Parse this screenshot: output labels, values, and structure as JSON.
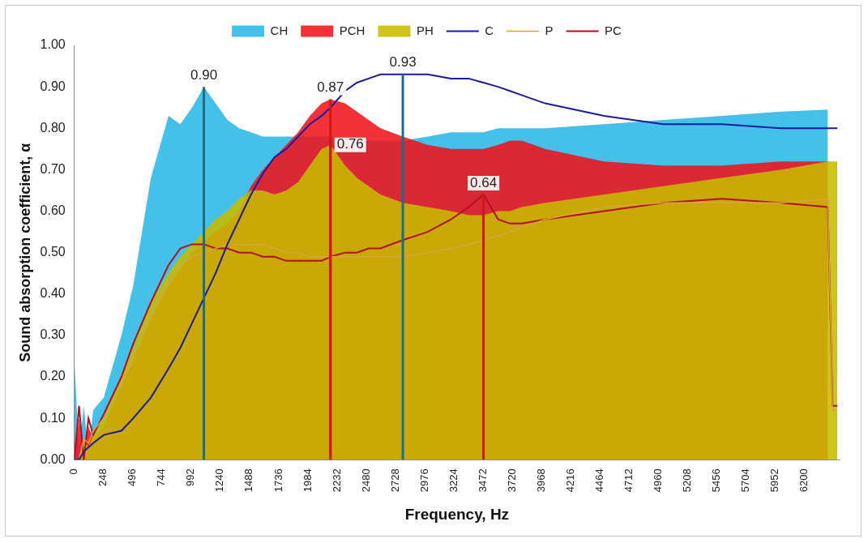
{
  "chart_data": {
    "type": "line",
    "x_label": "Frequency, Hz",
    "y_label": "Sound absorption coefficient, α",
    "legend": "top",
    "grid": false,
    "xlim": [
      0,
      6500
    ],
    "xticks": [
      0,
      248,
      496,
      744,
      992,
      1240,
      1488,
      1736,
      1984,
      2232,
      2480,
      2728,
      2976,
      3224,
      3472,
      3720,
      3968,
      4216,
      4464,
      4712,
      4960,
      5208,
      5456,
      5704,
      5952,
      6200
    ],
    "ylim": [
      0,
      1
    ],
    "yticks": [
      {
        "value": 0,
        "label": "0.00"
      },
      {
        "value": 0.1,
        "label": "0.10"
      },
      {
        "value": 0.2,
        "label": "0.20"
      },
      {
        "value": 0.3,
        "label": "0.30"
      },
      {
        "value": 0.4,
        "label": "0.40"
      },
      {
        "value": 0.5,
        "label": "0.50"
      },
      {
        "value": 0.6,
        "label": "0.60"
      },
      {
        "value": 0.7,
        "label": "0.70"
      },
      {
        "value": 0.8,
        "label": "0.80"
      },
      {
        "value": 0.9,
        "label": "0.90"
      },
      {
        "value": 1,
        "label": "1.00"
      }
    ],
    "x": [
      0,
      40,
      80,
      120,
      160,
      250,
      400,
      500,
      650,
      800,
      900,
      1000,
      1100,
      1200,
      1300,
      1400,
      1500,
      1600,
      1700,
      1800,
      1900,
      2000,
      2100,
      2175,
      2300,
      2400,
      2500,
      2600,
      2790,
      3000,
      3200,
      3350,
      3475,
      3600,
      3700,
      3800,
      4000,
      4500,
      5000,
      5500,
      6000,
      6400,
      6440,
      6480
    ],
    "series": [
      {
        "name": "CH",
        "type": "area",
        "color": "#2bb8e6",
        "values": [
          0.24,
          0.02,
          0.13,
          0.02,
          0.12,
          0.15,
          0.3,
          0.42,
          0.68,
          0.83,
          0.81,
          0.85,
          0.9,
          0.86,
          0.82,
          0.8,
          0.79,
          0.78,
          0.78,
          0.78,
          0.78,
          0.78,
          0.78,
          0.78,
          0.77,
          0.77,
          0.77,
          0.77,
          0.77,
          0.78,
          0.79,
          0.79,
          0.79,
          0.8,
          0.8,
          0.8,
          0.8,
          0.81,
          0.82,
          0.83,
          0.84,
          0.845,
          null,
          null
        ]
      },
      {
        "name": "PCH",
        "type": "area",
        "color": "#f0141e",
        "values": [
          0,
          0.1,
          0.02,
          0.08,
          0.05,
          0.08,
          0.18,
          0.24,
          0.34,
          0.42,
          0.46,
          0.5,
          0.53,
          0.55,
          0.57,
          0.6,
          0.66,
          0.7,
          0.73,
          0.76,
          0.79,
          0.83,
          0.86,
          0.87,
          0.86,
          0.84,
          0.82,
          0.8,
          0.78,
          0.76,
          0.75,
          0.75,
          0.75,
          0.76,
          0.77,
          0.77,
          0.75,
          0.72,
          0.71,
          0.71,
          0.72,
          0.72,
          null,
          null
        ]
      },
      {
        "name": "PH",
        "type": "area",
        "color": "#c8bc00",
        "values": [
          0,
          0,
          0.05,
          0.03,
          0.06,
          0.1,
          0.2,
          0.27,
          0.38,
          0.45,
          0.49,
          0.52,
          0.55,
          0.58,
          0.6,
          0.63,
          0.65,
          0.65,
          0.64,
          0.65,
          0.67,
          0.71,
          0.75,
          0.76,
          0.71,
          0.68,
          0.66,
          0.64,
          0.62,
          0.61,
          0.6,
          0.59,
          0.59,
          0.6,
          0.6,
          0.61,
          0.62,
          0.64,
          0.66,
          0.68,
          0.7,
          0.72,
          0.72,
          0.72
        ]
      },
      {
        "name": "C",
        "type": "line",
        "color": "#1a1aa0",
        "values": [
          0,
          0,
          0.02,
          0.03,
          0.04,
          0.06,
          0.07,
          0.1,
          0.15,
          0.22,
          0.27,
          0.33,
          0.39,
          0.45,
          0.52,
          0.58,
          0.64,
          0.69,
          0.73,
          0.75,
          0.78,
          0.81,
          0.83,
          0.85,
          0.89,
          0.91,
          0.92,
          0.93,
          0.93,
          0.93,
          0.92,
          0.92,
          0.91,
          0.9,
          0.89,
          0.88,
          0.86,
          0.83,
          0.81,
          0.81,
          0.8,
          0.8,
          0.8,
          0.8
        ]
      },
      {
        "name": "P",
        "type": "line",
        "color": "#d9a441",
        "values": [
          0,
          0,
          0.05,
          0.04,
          0.07,
          0.1,
          0.18,
          0.25,
          0.35,
          0.43,
          0.47,
          0.49,
          0.5,
          0.51,
          0.52,
          0.52,
          0.52,
          0.52,
          0.51,
          0.5,
          0.5,
          0.49,
          0.49,
          0.49,
          0.49,
          0.49,
          0.49,
          0.49,
          0.49,
          0.5,
          0.51,
          0.52,
          0.53,
          0.54,
          0.55,
          0.56,
          0.58,
          0.61,
          0.62,
          0.62,
          0.62,
          0.63,
          0.12,
          0.12
        ]
      },
      {
        "name": "PC",
        "type": "line",
        "color": "#b01020",
        "values": [
          0,
          0.13,
          0,
          0.1,
          0.06,
          0.11,
          0.2,
          0.28,
          0.38,
          0.47,
          0.51,
          0.52,
          0.52,
          0.51,
          0.51,
          0.5,
          0.5,
          0.49,
          0.49,
          0.48,
          0.48,
          0.48,
          0.48,
          0.49,
          0.5,
          0.5,
          0.51,
          0.51,
          0.53,
          0.55,
          0.58,
          0.61,
          0.64,
          0.58,
          0.57,
          0.57,
          0.58,
          0.6,
          0.62,
          0.63,
          0.62,
          0.61,
          0.13,
          0.13
        ]
      }
    ],
    "annotations": [
      {
        "text": "0.90",
        "x": 1100,
        "y": 0.9,
        "color": "#1b6e84"
      },
      {
        "text": "0.87",
        "x": 2175,
        "y": 0.87,
        "color": "#d01818"
      },
      {
        "text": "0.93",
        "x": 2790,
        "y": 0.93,
        "color": "#1b6e84"
      },
      {
        "text": "0.76",
        "x": 2175,
        "y": 0.76,
        "color": "#d01818"
      },
      {
        "text": "0.64",
        "x": 3475,
        "y": 0.64,
        "color": "#d01818"
      }
    ]
  }
}
